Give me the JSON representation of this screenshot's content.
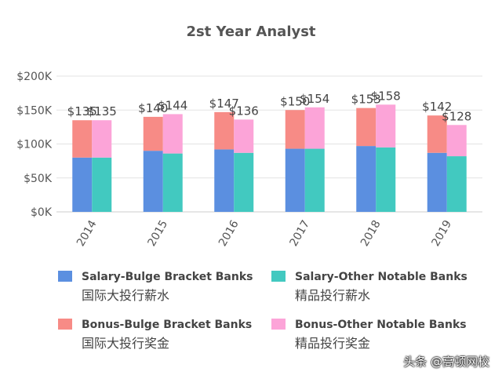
{
  "chart_data": {
    "type": "bar",
    "stacked": true,
    "grouped": true,
    "title": "2st Year Analyst",
    "categories": [
      "2014",
      "2015",
      "2016",
      "2017",
      "2018",
      "2019"
    ],
    "yticks": [
      "$0K",
      "$50K",
      "$100K",
      "$150K",
      "$200K"
    ],
    "ylim": [
      0,
      200
    ],
    "grid": true,
    "legend_position": "bottom",
    "groups": [
      {
        "salary": {
          "name": "Salary-Bulge Bracket Banks",
          "name_cn": "国际大投行薪水",
          "color": "#5b8fe0",
          "values": [
            80,
            90,
            92,
            93,
            97,
            87
          ]
        },
        "bonus": {
          "name": "Bonus-Bulge Bracket Banks",
          "name_cn": "国际大投行奖金",
          "color": "#f78b86",
          "values": [
            55,
            50,
            55,
            57,
            56,
            55
          ]
        },
        "totals": [
          "$135",
          "$140",
          "$147",
          "$150",
          "$153",
          "$142"
        ]
      },
      {
        "salary": {
          "name": "Salary-Other Notable Banks",
          "name_cn": "精品投行薪水",
          "color": "#42c9c0",
          "values": [
            80,
            86,
            87,
            93,
            95,
            82
          ]
        },
        "bonus": {
          "name": "Bonus-Other Notable Banks",
          "name_cn": "精品投行奖金",
          "color": "#fca4d8",
          "values": [
            55,
            58,
            49,
            61,
            63,
            46
          ]
        },
        "totals": [
          "$135",
          "$144",
          "$136",
          "$154",
          "$158",
          "$128"
        ]
      }
    ]
  },
  "watermark": "头条 @高顿网校"
}
